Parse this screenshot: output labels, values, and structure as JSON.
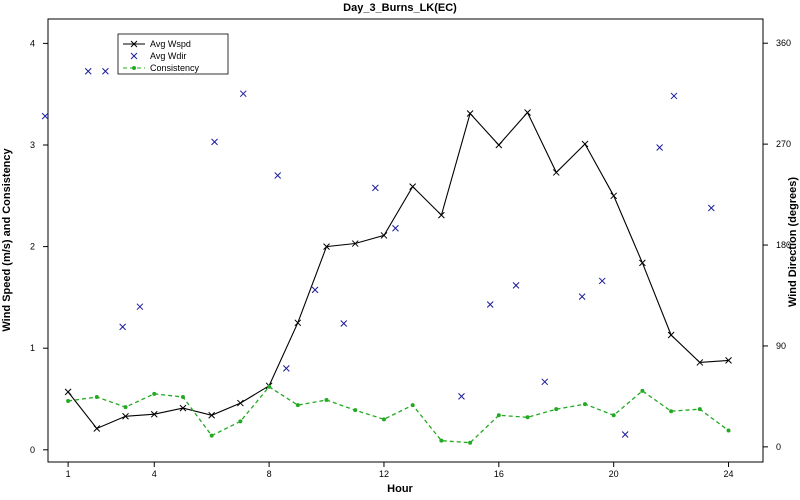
{
  "chart_data": {
    "type": "line",
    "title": "Day_3_Burns_LK(EC)",
    "xlabel": "Hour",
    "ylabel": "Wind Speed (m/s) and Consistency",
    "y2label": "Wind Direction (degrees)",
    "xlim": [
      0.3,
      25.2
    ],
    "ylim": [
      -0.12,
      4.24
    ],
    "y2lim": [
      -13.5,
      381.6
    ],
    "xticks": [
      1,
      4,
      8,
      12,
      16,
      20,
      24
    ],
    "yticks": [
      0,
      1,
      2,
      3,
      4
    ],
    "y2ticks": [
      0,
      90,
      180,
      270,
      360
    ],
    "legend_position": "top-left",
    "series": [
      {
        "name": "Avg Wspd",
        "type": "line",
        "axis": "left",
        "color": "#000000",
        "marker": "x",
        "x": [
          1,
          2,
          3,
          4,
          5,
          6,
          7,
          8,
          9,
          10,
          11,
          12,
          13,
          14,
          15,
          16,
          17,
          18,
          19,
          20,
          21,
          22,
          23,
          24
        ],
        "values": [
          0.57,
          0.21,
          0.33,
          0.35,
          0.41,
          0.34,
          0.46,
          0.63,
          1.25,
          2.0,
          2.03,
          2.11,
          2.59,
          2.31,
          3.31,
          3.0,
          3.32,
          2.73,
          3.01,
          2.5,
          1.84,
          1.13,
          0.86,
          0.88
        ]
      },
      {
        "name": "Avg Wdir",
        "type": "scatter",
        "axis": "right",
        "color": "#1c1c9c",
        "marker": "x",
        "x": [
          0.2,
          1.7,
          2.3,
          2.9,
          3.5,
          5.1,
          6.1,
          7.1,
          8.3,
          8.6,
          9.6,
          10.6,
          11.7,
          12.4,
          14.7,
          15.7,
          16.6,
          17.6,
          18.9,
          19.6,
          20.4,
          21.6,
          22.1,
          23.4
        ],
        "values": [
          295,
          335,
          335,
          107,
          125,
          335,
          272,
          315,
          242,
          70,
          140,
          110,
          231,
          195,
          45,
          127,
          144,
          58,
          134,
          148,
          11,
          267,
          313,
          213
        ]
      },
      {
        "name": "Consistency",
        "type": "line",
        "axis": "left",
        "color": "#22aa22",
        "marker": "dot",
        "dashed": true,
        "x": [
          1,
          2,
          3,
          4,
          5,
          6,
          7,
          8,
          9,
          10,
          11,
          12,
          13,
          14,
          15,
          16,
          17,
          18,
          19,
          20,
          21,
          22,
          23,
          24
        ],
        "values": [
          0.48,
          0.52,
          0.42,
          0.55,
          0.52,
          0.14,
          0.28,
          0.62,
          0.44,
          0.49,
          0.39,
          0.3,
          0.44,
          0.09,
          0.07,
          0.34,
          0.32,
          0.4,
          0.45,
          0.34,
          0.58,
          0.38,
          0.4,
          0.19
        ]
      }
    ]
  }
}
